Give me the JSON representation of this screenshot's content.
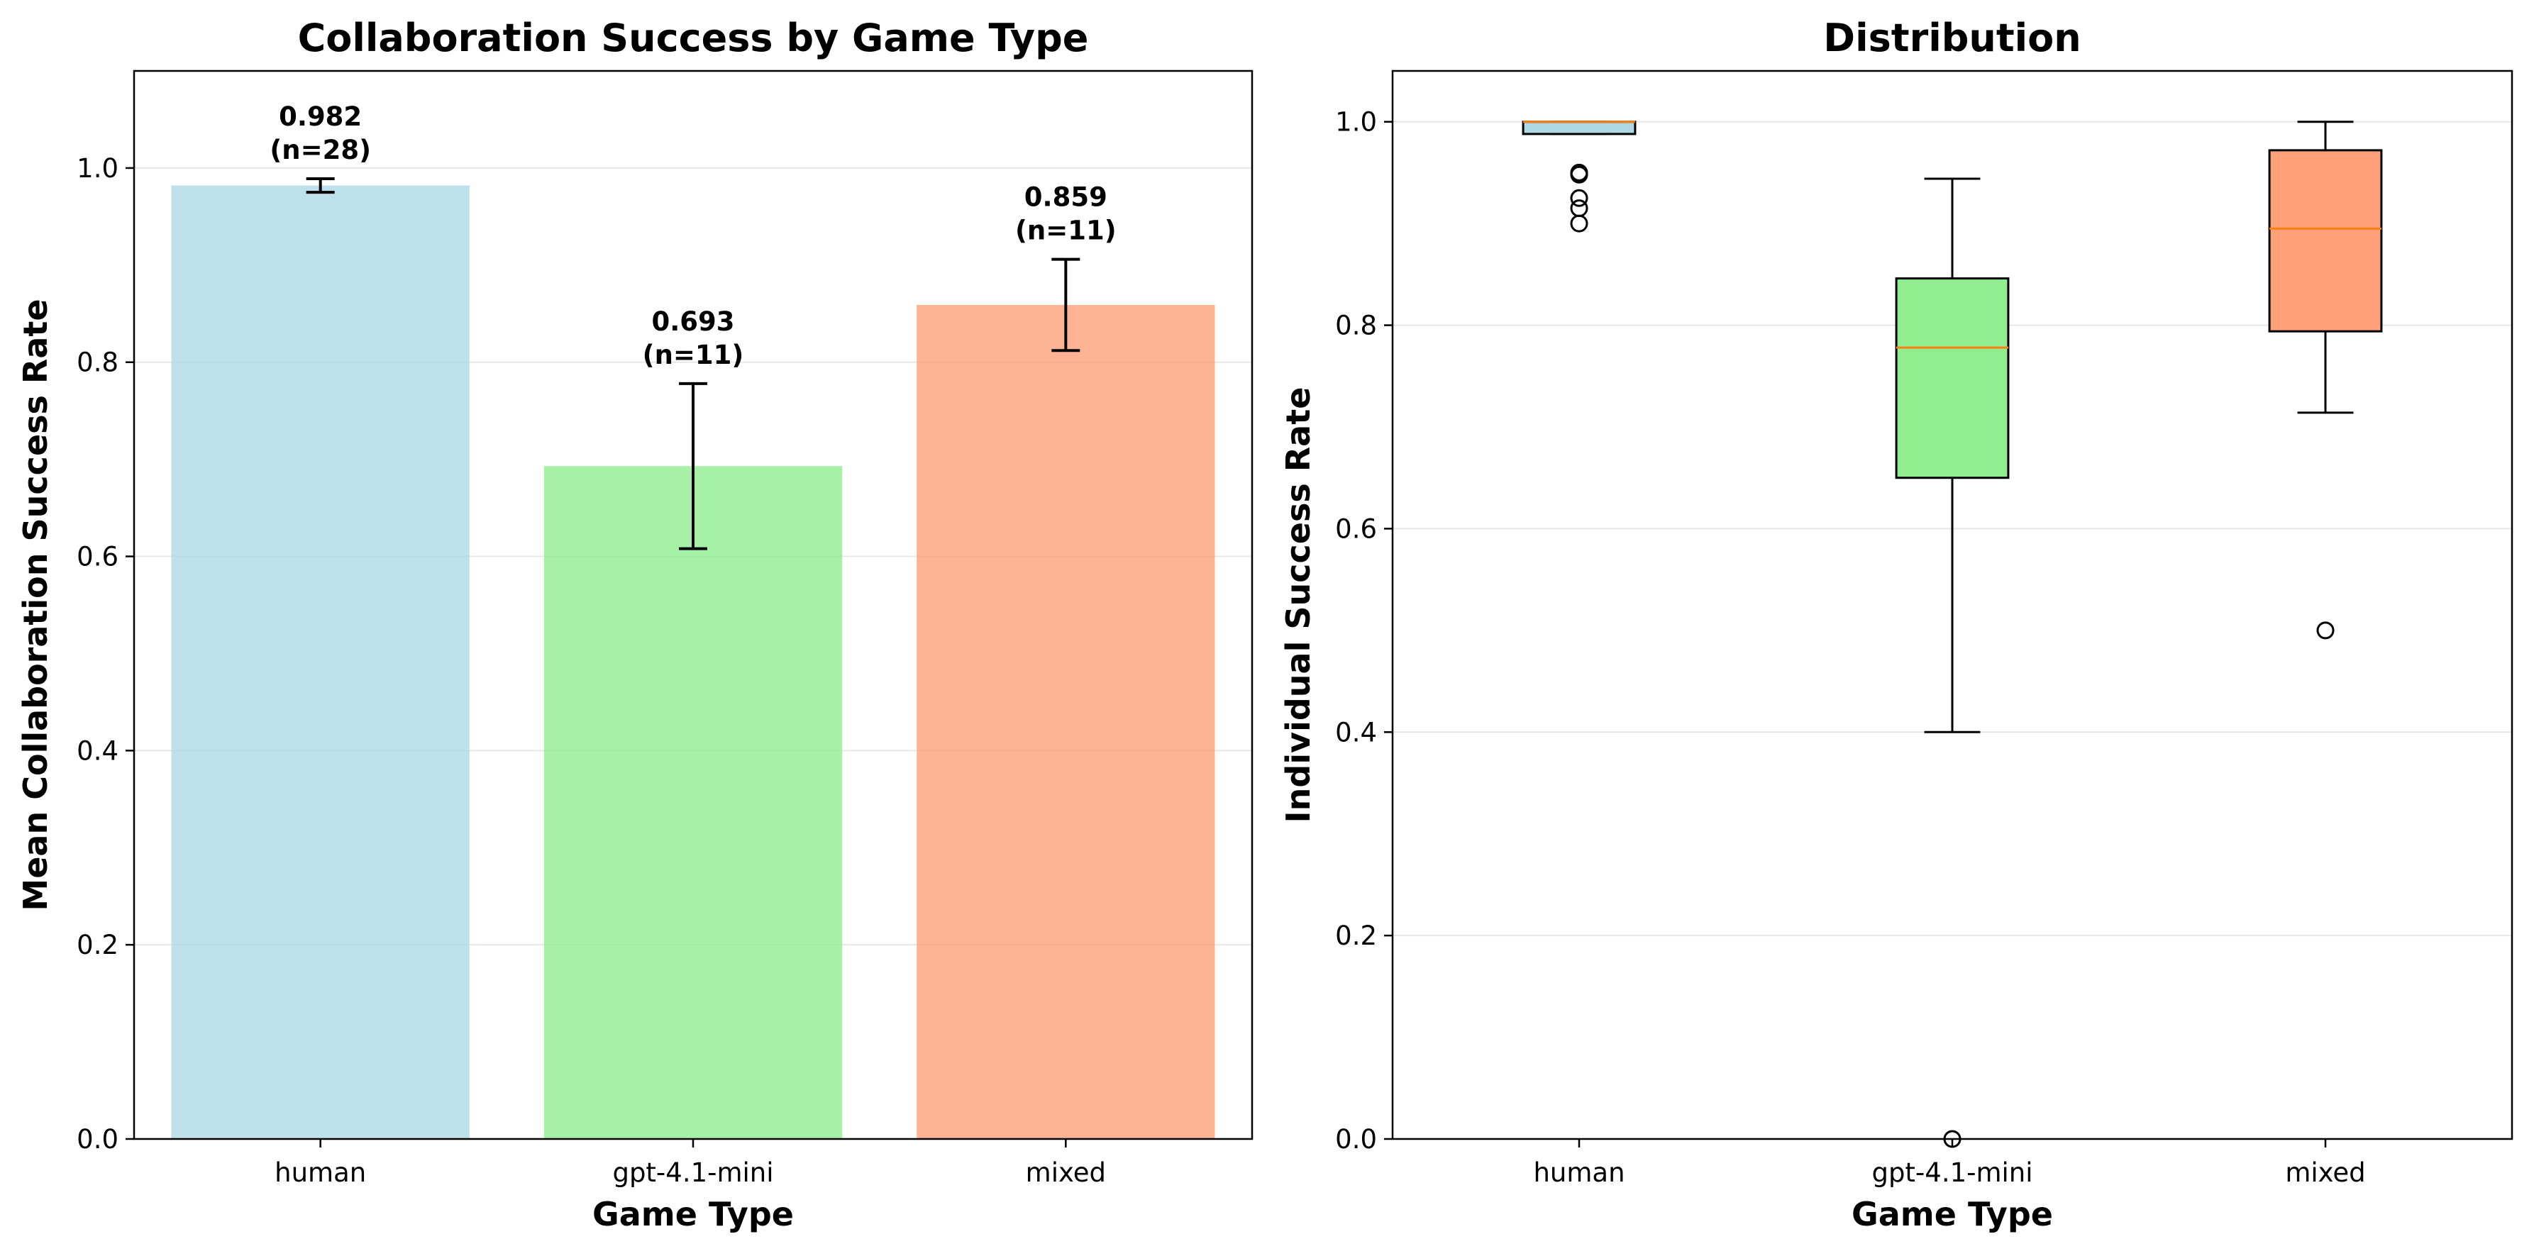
{
  "chart_data": [
    {
      "type": "bar",
      "title": "Collaboration Success by Game Type",
      "xlabel": "Game Type",
      "ylabel": "Mean Collaboration Success Rate",
      "categories": [
        "human",
        "gpt-4.1-mini",
        "mixed"
      ],
      "values": [
        0.982,
        0.693,
        0.859
      ],
      "error_low": [
        0.975,
        0.608,
        0.812
      ],
      "error_high": [
        0.989,
        0.778,
        0.906
      ],
      "value_labels": [
        "0.982",
        "0.693",
        "0.859"
      ],
      "n_labels": [
        "(n=28)",
        "(n=11)",
        "(n=11)"
      ],
      "colors": [
        "#add8e6",
        "#90ee90",
        "#ffa07a"
      ],
      "ylim": [
        0,
        1.1
      ],
      "yticks": [
        0.0,
        0.2,
        0.4,
        0.6,
        0.8,
        1.0
      ],
      "ytick_labels": [
        "0.0",
        "0.2",
        "0.4",
        "0.6",
        "0.8",
        "1.0"
      ],
      "grid": "y"
    },
    {
      "type": "box",
      "title": "Distribution",
      "xlabel": "Game Type",
      "ylabel": "Individual Success Rate",
      "categories": [
        "human",
        "gpt-4.1-mini",
        "mixed"
      ],
      "boxes": [
        {
          "whisker_low": 0.988,
          "q1": 0.988,
          "median": 1.0,
          "q3": 1.0,
          "whisker_high": 1.0,
          "outliers": [
            0.95,
            0.948,
            0.925,
            0.915,
            0.9
          ]
        },
        {
          "whisker_low": 0.4,
          "q1": 0.65,
          "median": 0.778,
          "q3": 0.846,
          "whisker_high": 0.944,
          "outliers": [
            0.0
          ]
        },
        {
          "whisker_low": 0.714,
          "q1": 0.794,
          "median": 0.895,
          "q3": 0.972,
          "whisker_high": 1.0,
          "outliers": [
            0.5
          ]
        }
      ],
      "colors": [
        "#add8e6",
        "#90ee90",
        "#ffa07a"
      ],
      "median_color": "#ff7f0e",
      "ylim": [
        0,
        1.05
      ],
      "yticks": [
        0.0,
        0.2,
        0.4,
        0.6,
        0.8,
        1.0
      ],
      "ytick_labels": [
        "0.0",
        "0.2",
        "0.4",
        "0.6",
        "0.8",
        "1.0"
      ],
      "grid": "y"
    }
  ]
}
